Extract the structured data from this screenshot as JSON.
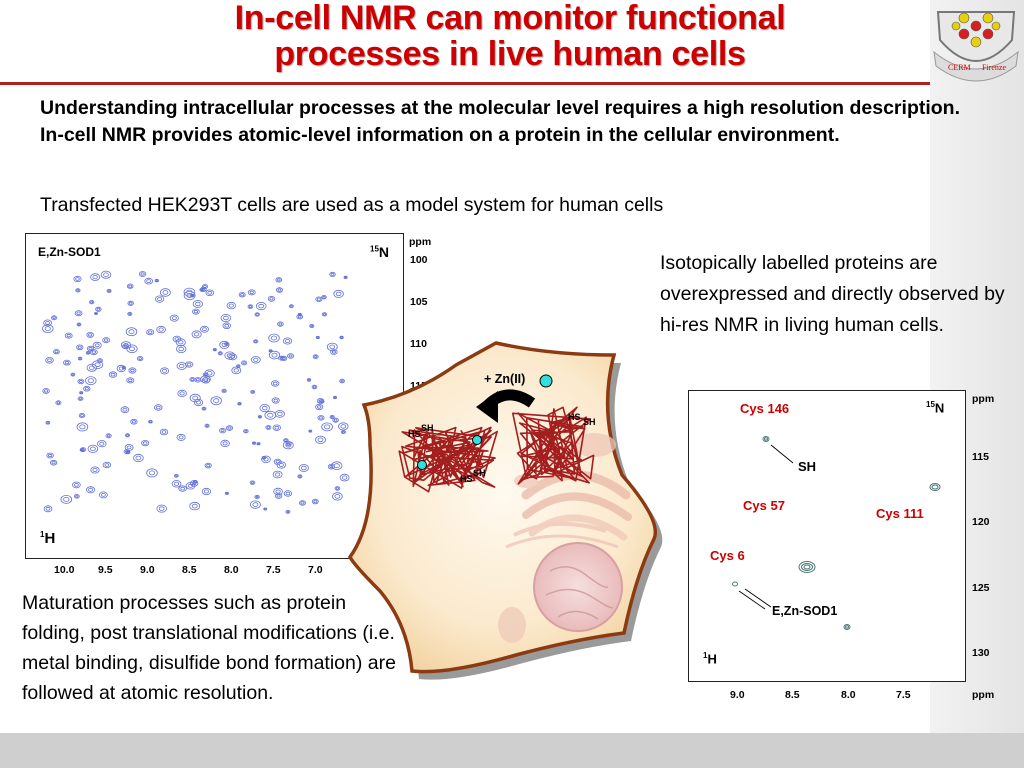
{
  "slide": {
    "title_line1": "In-cell NMR can monitor functional",
    "title_line2": "processes in live human cells",
    "intro": "Understanding intracellular processes at the molecular level requires a high resolution description. In-cell NMR provides atomic-level information on a protein in the cellular environment.",
    "subintro": "Transfected HEK293T cells are used as a model system for human cells",
    "note_right": "Isotopically labelled proteins are overexpressed and directly observed by hi-res NMR in living human cells.",
    "note_left": "Maturation processes such as protein folding, post translational modifications (i.e. metal binding, disulfide bond formation) are followed at atomic resolution.",
    "logo_text_left": "CERM",
    "logo_text_right": "Firenze"
  },
  "spectrum_left": {
    "label": "E,Zn-SOD1",
    "n_axis_sup": "15",
    "n_axis_letter": "N",
    "h_axis_sup": "1",
    "h_axis_letter": "H",
    "ppm_label": "ppm",
    "y_ticks": [
      "100",
      "105",
      "110",
      "115"
    ],
    "x_ticks": [
      "10.0",
      "9.5",
      "9.0",
      "8.5",
      "8.0",
      "7.5",
      "7.0"
    ],
    "peak_color": "#5f6fd8"
  },
  "cell_figure": {
    "zn_label": "+ Zn(II)",
    "hs1": "HS",
    "sh1": "SH",
    "hs2": "HS",
    "sh2": "SH",
    "hs3": "HS",
    "sh3": "SH",
    "protein_color": "#a31e1e",
    "zinc_color": "#2ee0e0"
  },
  "spectrum_right": {
    "n_axis_sup": "15",
    "n_axis_letter": "N",
    "h_axis_sup": "1",
    "h_axis_letter": "H",
    "ppm_top": "ppm",
    "ppm_bottom": "ppm",
    "y_ticks": [
      "115",
      "120",
      "125",
      "130"
    ],
    "x_ticks": [
      "9.0",
      "8.5",
      "8.0",
      "7.5"
    ],
    "cys146": "Cys 146",
    "cys57": "Cys 57",
    "cys111": "Cys 111",
    "cys6": "Cys 6",
    "sh_label": "SH",
    "ezn_label": "E,Zn-SOD1",
    "peak_color": "#4a7a78"
  }
}
